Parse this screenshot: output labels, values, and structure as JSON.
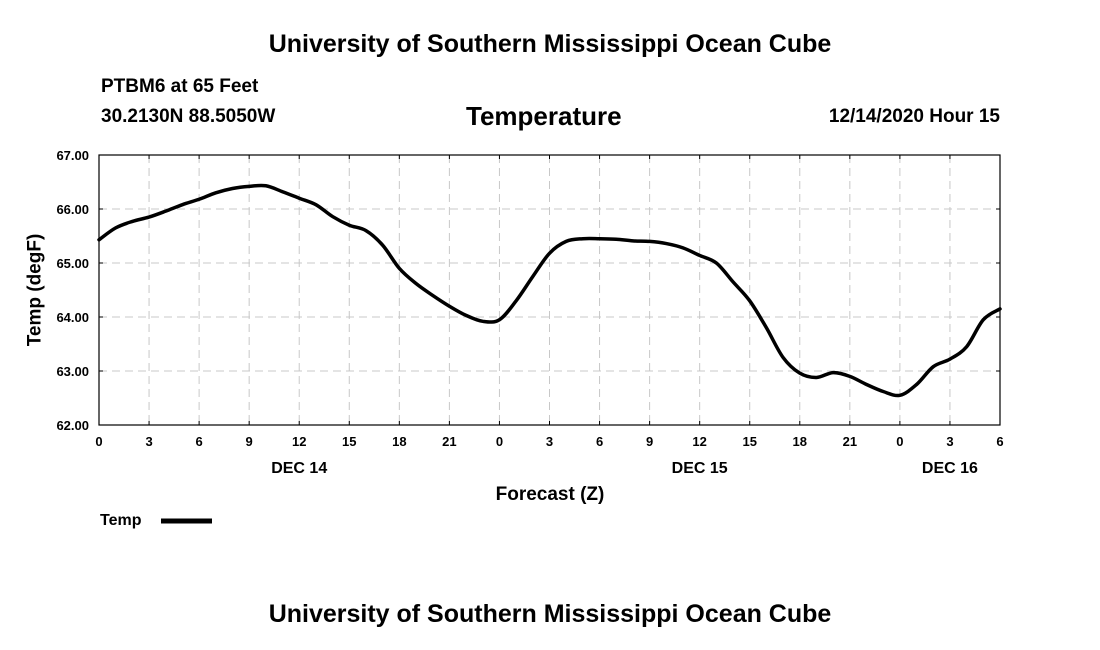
{
  "header": {
    "title": "University of Southern Mississippi Ocean Cube",
    "station": "PTBM6 at 65 Feet",
    "coordinates": "30.2130N 88.5050W",
    "chart_title": "Temperature",
    "run_time": "12/14/2020 Hour 15"
  },
  "footer": {
    "title": "University of Southern Mississippi Ocean Cube"
  },
  "colors": {
    "line": "#000000",
    "grid": "#c8c8c8",
    "background": "#ffffff"
  },
  "chart_data": {
    "type": "line",
    "title": "Temperature",
    "xlabel": "Forecast (Z)",
    "ylabel": "Temp (degF)",
    "xlim": [
      0,
      54
    ],
    "ylim": [
      62.0,
      67.0
    ],
    "x_ticks": [
      0,
      3,
      6,
      9,
      12,
      15,
      18,
      21,
      24,
      27,
      30,
      33,
      36,
      39,
      42,
      45,
      48,
      51,
      54
    ],
    "x_tick_labels": [
      "0",
      "3",
      "6",
      "9",
      "12",
      "15",
      "18",
      "21",
      "0",
      "3",
      "6",
      "9",
      "12",
      "15",
      "18",
      "21",
      "0",
      "3",
      "6"
    ],
    "y_ticks": [
      62.0,
      63.0,
      64.0,
      65.0,
      66.0,
      67.0
    ],
    "y_tick_labels": [
      "62.00",
      "63.00",
      "64.00",
      "65.00",
      "66.00",
      "67.00"
    ],
    "day_labels": [
      {
        "x": 12,
        "label": "DEC 14"
      },
      {
        "x": 36,
        "label": "DEC 15"
      },
      {
        "x": 51,
        "label": "DEC 16"
      }
    ],
    "grid": true,
    "legend": {
      "position": "bottom-left",
      "entries": [
        "Temp"
      ]
    },
    "series": [
      {
        "name": "Temp",
        "x": [
          0,
          1,
          2,
          3,
          4,
          5,
          6,
          7,
          8,
          9,
          10,
          11,
          12,
          13,
          14,
          15,
          16,
          17,
          18,
          19,
          20,
          21,
          22,
          23,
          24,
          25,
          26,
          27,
          28,
          29,
          30,
          31,
          32,
          33,
          34,
          35,
          36,
          37,
          38,
          39,
          40,
          41,
          42,
          43,
          44,
          45,
          46,
          47,
          48,
          49,
          50,
          51,
          52,
          53,
          54
        ],
        "values": [
          65.43,
          65.65,
          65.77,
          65.85,
          65.96,
          66.08,
          66.18,
          66.3,
          66.38,
          66.42,
          66.43,
          66.32,
          66.2,
          66.08,
          65.86,
          65.7,
          65.6,
          65.33,
          64.9,
          64.62,
          64.4,
          64.2,
          64.03,
          63.92,
          63.95,
          64.3,
          64.75,
          65.18,
          65.4,
          65.45,
          65.45,
          65.44,
          65.41,
          65.4,
          65.36,
          65.28,
          65.14,
          65.0,
          64.65,
          64.3,
          63.8,
          63.25,
          62.96,
          62.88,
          62.97,
          62.9,
          62.75,
          62.62,
          62.55,
          62.75,
          63.08,
          63.22,
          63.45,
          63.95,
          64.15
        ]
      }
    ]
  }
}
